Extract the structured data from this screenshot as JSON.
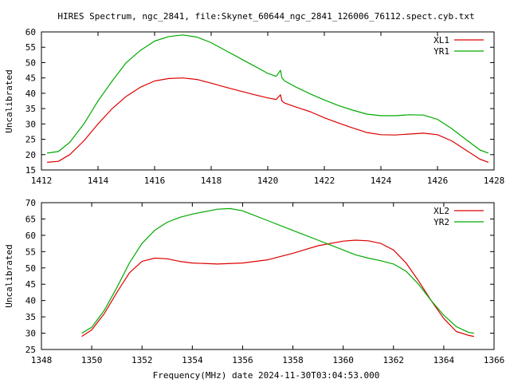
{
  "title": "HIRES Spectrum, ngc_2841, file:Skynet_60644_ngc_2841_126006_76112.spect.cyb.txt",
  "xlabel_bottom": "Frequency(MHz) date 2024-11-30T03:04:53.000",
  "chart_data": [
    {
      "type": "line",
      "ylabel": "Uncalibrated",
      "xlim": [
        1412,
        1428
      ],
      "ylim": [
        15,
        60
      ],
      "xticks": [
        1412,
        1414,
        1416,
        1418,
        1420,
        1422,
        1424,
        1426,
        1428
      ],
      "yticks": [
        15,
        20,
        25,
        30,
        35,
        40,
        45,
        50,
        55,
        60
      ],
      "legend": "top-right",
      "series": [
        {
          "name": "XL1",
          "color": "#dd0000",
          "x": [
            1412.2,
            1412.6,
            1413.0,
            1413.5,
            1414.0,
            1414.5,
            1415.0,
            1415.5,
            1416.0,
            1416.5,
            1417.0,
            1417.5,
            1418.0,
            1418.5,
            1419.0,
            1419.5,
            1420.0,
            1420.3,
            1420.45,
            1420.5,
            1420.6,
            1421.0,
            1421.5,
            1422.0,
            1422.5,
            1423.0,
            1423.5,
            1424.0,
            1424.5,
            1425.0,
            1425.5,
            1426.0,
            1426.5,
            1427.0,
            1427.5,
            1427.8
          ],
          "y": [
            17.5,
            17.8,
            20.0,
            24.5,
            30.0,
            35.0,
            39.0,
            42.0,
            44.0,
            44.8,
            45.0,
            44.5,
            43.3,
            42.0,
            40.8,
            39.6,
            38.5,
            38.0,
            39.5,
            37.5,
            36.8,
            35.5,
            34.0,
            32.0,
            30.3,
            28.7,
            27.2,
            26.5,
            26.4,
            26.7,
            27.0,
            26.5,
            24.5,
            21.5,
            18.5,
            17.5
          ]
        },
        {
          "name": "YR1",
          "color": "#00aa00",
          "x": [
            1412.2,
            1412.6,
            1413.0,
            1413.5,
            1414.0,
            1414.5,
            1415.0,
            1415.5,
            1416.0,
            1416.5,
            1417.0,
            1417.5,
            1418.0,
            1418.5,
            1419.0,
            1419.5,
            1420.0,
            1420.3,
            1420.45,
            1420.5,
            1420.6,
            1421.0,
            1421.5,
            1422.0,
            1422.5,
            1423.0,
            1423.5,
            1424.0,
            1424.5,
            1425.0,
            1425.5,
            1426.0,
            1426.5,
            1427.0,
            1427.5,
            1427.8
          ],
          "y": [
            20.5,
            21.0,
            24.0,
            30.0,
            37.5,
            44.0,
            50.0,
            54.0,
            57.0,
            58.5,
            59.0,
            58.3,
            56.5,
            54.0,
            51.5,
            49.0,
            46.5,
            45.5,
            47.5,
            45.0,
            44.0,
            42.0,
            39.8,
            37.8,
            36.0,
            34.5,
            33.2,
            32.7,
            32.7,
            33.0,
            32.9,
            31.5,
            28.5,
            25.0,
            21.5,
            20.5
          ]
        }
      ]
    },
    {
      "type": "line",
      "ylabel": "Uncalibrated",
      "xlim": [
        1348,
        1366
      ],
      "ylim": [
        25,
        70
      ],
      "xticks": [
        1348,
        1350,
        1352,
        1354,
        1356,
        1358,
        1360,
        1362,
        1364,
        1366
      ],
      "yticks": [
        25,
        30,
        35,
        40,
        45,
        50,
        55,
        60,
        65,
        70
      ],
      "legend": "top-right",
      "series": [
        {
          "name": "XL2",
          "color": "#dd0000",
          "x": [
            1349.6,
            1350.0,
            1350.5,
            1351.0,
            1351.5,
            1352.0,
            1352.5,
            1353.0,
            1353.5,
            1354.0,
            1355.0,
            1356.0,
            1357.0,
            1358.0,
            1359.0,
            1360.0,
            1360.5,
            1361.0,
            1361.5,
            1362.0,
            1362.5,
            1363.0,
            1363.5,
            1364.0,
            1364.5,
            1365.0,
            1365.2
          ],
          "y": [
            29.0,
            31.0,
            36.0,
            42.5,
            48.5,
            52.0,
            53.0,
            52.8,
            52.0,
            51.5,
            51.2,
            51.5,
            52.5,
            54.5,
            56.8,
            58.2,
            58.5,
            58.3,
            57.5,
            55.5,
            51.5,
            46.0,
            40.0,
            34.5,
            30.5,
            29.3,
            29.0
          ]
        },
        {
          "name": "YR2",
          "color": "#00aa00",
          "x": [
            1349.6,
            1350.0,
            1350.5,
            1351.0,
            1351.5,
            1352.0,
            1352.5,
            1353.0,
            1353.5,
            1354.0,
            1355.0,
            1355.5,
            1356.0,
            1357.0,
            1358.0,
            1359.0,
            1360.0,
            1360.5,
            1361.0,
            1361.5,
            1362.0,
            1362.5,
            1363.0,
            1363.5,
            1364.0,
            1364.5,
            1365.0,
            1365.2
          ],
          "y": [
            30.0,
            31.8,
            37.0,
            44.0,
            51.5,
            57.5,
            61.5,
            64.0,
            65.5,
            66.5,
            68.0,
            68.2,
            67.5,
            64.5,
            61.5,
            58.5,
            55.5,
            54.0,
            53.0,
            52.2,
            51.2,
            49.0,
            45.0,
            40.0,
            35.5,
            32.0,
            30.2,
            30.0
          ]
        }
      ]
    }
  ]
}
